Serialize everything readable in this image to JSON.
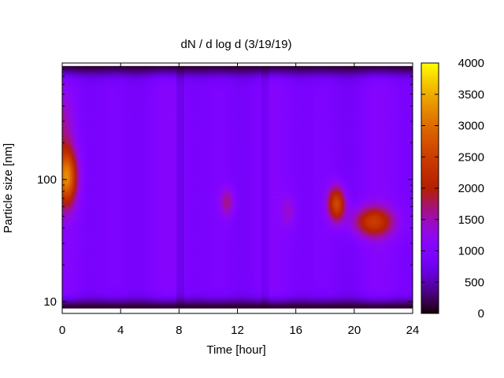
{
  "chart_data": {
    "type": "heatmap",
    "title": "dN / d log d (3/19/19)",
    "xlabel": "Time [hour]",
    "ylabel": "Particle size [nm]",
    "x_scale": "linear",
    "y_scale": "log",
    "xlim": [
      0,
      24
    ],
    "ylim": [
      8,
      900
    ],
    "x_ticks": [
      0,
      4,
      8,
      12,
      16,
      20,
      24
    ],
    "x_tick_labels": [
      "0",
      "4",
      "8",
      "12",
      "16",
      "20",
      "24"
    ],
    "y_ticks": [
      10,
      100
    ],
    "y_tick_labels": [
      "10",
      "100"
    ],
    "colorbar": {
      "min": 0,
      "max": 4000,
      "ticks": [
        0,
        500,
        1000,
        1500,
        2000,
        2500,
        3000,
        3500,
        4000
      ],
      "tick_labels": [
        "0",
        "500",
        "1000",
        "1500",
        "2000",
        "2500",
        "3000",
        "3500",
        "4000"
      ],
      "palette": "black-purple-red-orange-yellow"
    },
    "data_extent": {
      "x": [
        0,
        24
      ],
      "y": [
        9,
        850
      ]
    },
    "hotspots": [
      {
        "time": 0.3,
        "size": 105,
        "peak": 3300
      },
      {
        "time": 18.8,
        "size": 63,
        "peak": 2800
      },
      {
        "time": 21.3,
        "size": 45,
        "peak": 2500
      },
      {
        "time": 11.3,
        "size": 65,
        "peak": 1800
      },
      {
        "time": 15.5,
        "size": 55,
        "peak": 1500
      }
    ],
    "background_level": 1100,
    "grid": false,
    "legend": "none"
  }
}
